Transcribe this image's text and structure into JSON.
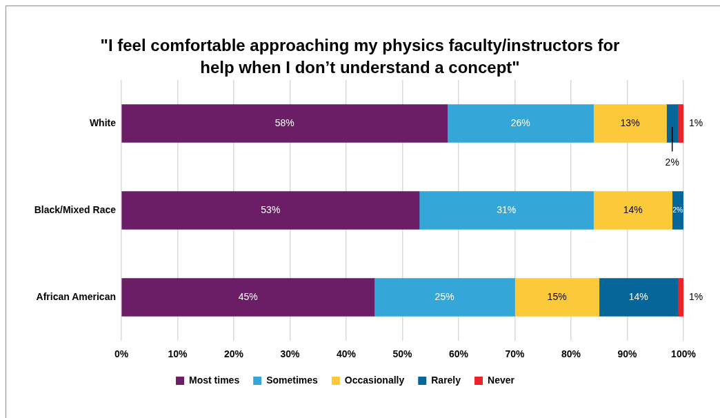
{
  "chart_data": {
    "type": "bar",
    "orientation": "horizontal",
    "stacked": true,
    "title": "\"I feel comfortable approaching my physics faculty/instructors for help when I don’t understand a concept\"",
    "categories": [
      "White",
      "Black/Mixed Race",
      "African American"
    ],
    "series": [
      {
        "name": "Most times",
        "color": "#6b1d66",
        "values": [
          58,
          53,
          45
        ],
        "value_labels": [
          "58%",
          "53%",
          "45%"
        ]
      },
      {
        "name": "Sometimes",
        "color": "#35a6d8",
        "values": [
          26,
          31,
          25
        ],
        "value_labels": [
          "26%",
          "31%",
          "25%"
        ]
      },
      {
        "name": "Occasionally",
        "color": "#fcc93a",
        "values": [
          13,
          14,
          15
        ],
        "value_labels": [
          "13%",
          "14%",
          "15%"
        ]
      },
      {
        "name": "Rarely",
        "color": "#076699",
        "values": [
          2,
          2,
          14
        ],
        "value_labels": [
          "2%",
          "2%",
          "14%"
        ]
      },
      {
        "name": "Never",
        "color": "#e9242a",
        "values": [
          1,
          null,
          1
        ],
        "value_labels": [
          "1%",
          null,
          "1%"
        ]
      }
    ],
    "xlim": [
      0,
      100
    ],
    "xticks": [
      {
        "value": 0,
        "label": "0%"
      },
      {
        "value": 10,
        "label": "10%"
      },
      {
        "value": 20,
        "label": "20%"
      },
      {
        "value": 30,
        "label": "30%"
      },
      {
        "value": 40,
        "label": "40%"
      },
      {
        "value": 50,
        "label": "50%"
      },
      {
        "value": 60,
        "label": "60%"
      },
      {
        "value": 70,
        "label": "70%"
      },
      {
        "value": 80,
        "label": "80%"
      },
      {
        "value": 90,
        "label": "90%"
      },
      {
        "value": 100,
        "label": "100%"
      }
    ],
    "grid": "x",
    "legend": "bottom"
  }
}
